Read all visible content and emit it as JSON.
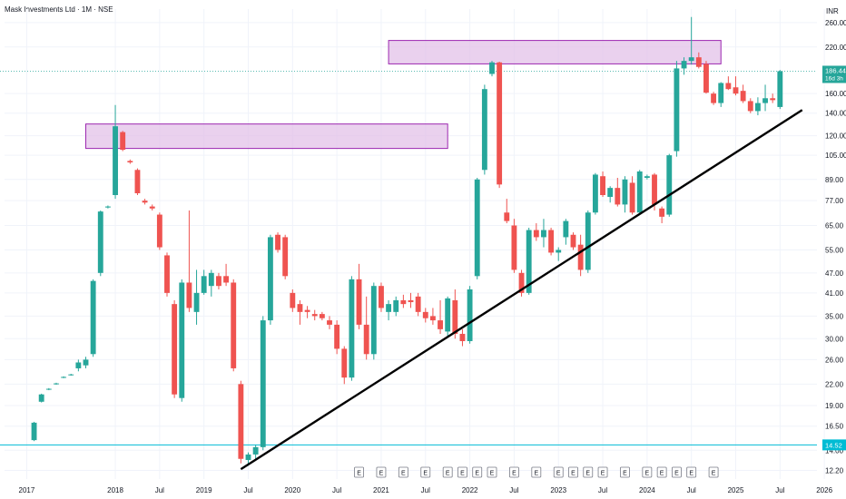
{
  "header": {
    "title": "Mask Investments Ltd · 1M · NSE"
  },
  "axis": {
    "currency": "INR"
  },
  "price_badge": {
    "value": "186.44",
    "countdown": "16d 3h",
    "color": "#26a69a"
  },
  "level_badge": {
    "value": "14.52",
    "color": "#00bcd4"
  },
  "colors": {
    "up": "#26a69a",
    "down": "#ef5350",
    "zone_fill": "#e1bee7",
    "zone_stroke": "#9c27b0",
    "trendline": "#000000",
    "hline": "#00bcd4"
  },
  "earnings_marker": "E",
  "chart_data": {
    "type": "candlestick",
    "title": "Mask Investments Ltd · 1M · NSE",
    "scale": "log",
    "ylim": [
      11.5,
      285
    ],
    "xlim": [
      "2016-10",
      "2025-12"
    ],
    "grid": true,
    "y_ticks": [
      "260.00",
      "220.00",
      "160.00",
      "140.00",
      "120.00",
      "105.00",
      "89.00",
      "77.00",
      "65.00",
      "55.00",
      "47.00",
      "41.00",
      "35.00",
      "30.00",
      "26.00",
      "22.00",
      "19.00",
      "16.50",
      "14.00",
      "12.20"
    ],
    "x_ticks": [
      {
        "label": "2017",
        "date": "2017-01"
      },
      {
        "label": "2018",
        "date": "2018-01"
      },
      {
        "label": "Jul",
        "date": "2018-07"
      },
      {
        "label": "2019",
        "date": "2019-01"
      },
      {
        "label": "Jul",
        "date": "2019-07"
      },
      {
        "label": "2020",
        "date": "2020-01"
      },
      {
        "label": "Jul",
        "date": "2020-07"
      },
      {
        "label": "2021",
        "date": "2021-01"
      },
      {
        "label": "Jul",
        "date": "2021-07"
      },
      {
        "label": "2022",
        "date": "2022-01"
      },
      {
        "label": "Jul",
        "date": "2022-07"
      },
      {
        "label": "2023",
        "date": "2023-01"
      },
      {
        "label": "Jul",
        "date": "2023-07"
      },
      {
        "label": "2024",
        "date": "2024-01"
      },
      {
        "label": "Jul",
        "date": "2024-07"
      },
      {
        "label": "2025",
        "date": "2025-01"
      },
      {
        "label": "Jul",
        "date": "2025-07"
      },
      {
        "label": "2026",
        "date": "2026-01"
      }
    ],
    "candles": [
      {
        "date": "2017-02",
        "o": 15.0,
        "h": 17.0,
        "l": 14.9,
        "c": 16.9
      },
      {
        "date": "2017-03",
        "o": 19.5,
        "h": 20.6,
        "l": 19.4,
        "c": 20.5
      },
      {
        "date": "2017-04",
        "o": 21.2,
        "h": 21.4,
        "l": 21.1,
        "c": 21.3
      },
      {
        "date": "2017-05",
        "o": 22.0,
        "h": 22.2,
        "l": 21.9,
        "c": 22.1
      },
      {
        "date": "2017-06",
        "o": 23.0,
        "h": 23.2,
        "l": 22.9,
        "c": 23.1
      },
      {
        "date": "2017-07",
        "o": 23.4,
        "h": 23.6,
        "l": 23.3,
        "c": 23.5
      },
      {
        "date": "2017-08",
        "o": 24.5,
        "h": 26.0,
        "l": 24.0,
        "c": 25.5
      },
      {
        "date": "2017-09",
        "o": 25.0,
        "h": 26.5,
        "l": 24.5,
        "c": 26.0
      },
      {
        "date": "2017-10",
        "o": 27.0,
        "h": 45.0,
        "l": 26.5,
        "c": 44.5
      },
      {
        "date": "2017-11",
        "o": 47.0,
        "h": 72.0,
        "l": 46.0,
        "c": 71.5
      },
      {
        "date": "2017-12",
        "o": 73.5,
        "h": 74.5,
        "l": 73.0,
        "c": 74.0
      },
      {
        "date": "2018-01",
        "o": 80.0,
        "h": 148.0,
        "l": 78.0,
        "c": 128.0
      },
      {
        "date": "2018-02",
        "o": 123.0,
        "h": 124.0,
        "l": 108.0,
        "c": 109.0
      },
      {
        "date": "2018-03",
        "o": 101.0,
        "h": 102.0,
        "l": 99.0,
        "c": 100.0
      },
      {
        "date": "2018-04",
        "o": 95.0,
        "h": 96.0,
        "l": 80.0,
        "c": 81.0
      },
      {
        "date": "2018-05",
        "o": 77.0,
        "h": 78.0,
        "l": 75.0,
        "c": 76.0
      },
      {
        "date": "2018-06",
        "o": 74.0,
        "h": 75.0,
        "l": 72.0,
        "c": 73.0
      },
      {
        "date": "2018-07",
        "o": 70.0,
        "h": 71.0,
        "l": 55.0,
        "c": 56.0
      },
      {
        "date": "2018-08",
        "o": 53.0,
        "h": 54.0,
        "l": 40.0,
        "c": 41.0
      },
      {
        "date": "2018-09",
        "o": 38.0,
        "h": 39.0,
        "l": 20.0,
        "c": 20.5
      },
      {
        "date": "2018-10",
        "o": 20.0,
        "h": 45.0,
        "l": 19.5,
        "c": 44.0
      },
      {
        "date": "2018-11",
        "o": 44.0,
        "h": 72.0,
        "l": 36.0,
        "c": 37.0
      },
      {
        "date": "2018-12",
        "o": 36.0,
        "h": 48.0,
        "l": 33.0,
        "c": 41.0
      },
      {
        "date": "2019-01",
        "o": 41.0,
        "h": 48.0,
        "l": 40.5,
        "c": 46.0
      },
      {
        "date": "2019-02",
        "o": 43.0,
        "h": 48.0,
        "l": 40.0,
        "c": 47.0
      },
      {
        "date": "2019-03",
        "o": 46.0,
        "h": 47.0,
        "l": 42.0,
        "c": 43.0
      },
      {
        "date": "2019-04",
        "o": 46.0,
        "h": 50.0,
        "l": 43.0,
        "c": 44.0
      },
      {
        "date": "2019-05",
        "o": 44.0,
        "h": 45.0,
        "l": 24.0,
        "c": 24.5
      },
      {
        "date": "2019-06",
        "o": 22.0,
        "h": 22.5,
        "l": 12.8,
        "c": 13.2
      },
      {
        "date": "2019-07",
        "o": 13.1,
        "h": 13.8,
        "l": 12.6,
        "c": 13.6
      },
      {
        "date": "2019-08",
        "o": 13.6,
        "h": 14.5,
        "l": 13.2,
        "c": 14.3
      },
      {
        "date": "2019-09",
        "o": 14.3,
        "h": 35.0,
        "l": 14.0,
        "c": 34.0
      },
      {
        "date": "2019-10",
        "o": 34.0,
        "h": 61.0,
        "l": 33.0,
        "c": 60.0
      },
      {
        "date": "2019-11",
        "o": 61.0,
        "h": 62.0,
        "l": 54.0,
        "c": 55.0
      },
      {
        "date": "2019-12",
        "o": 60.0,
        "h": 61.0,
        "l": 45.0,
        "c": 46.0
      },
      {
        "date": "2020-01",
        "o": 41.0,
        "h": 42.0,
        "l": 36.0,
        "c": 37.0
      },
      {
        "date": "2020-02",
        "o": 38.0,
        "h": 39.0,
        "l": 33.0,
        "c": 36.0
      },
      {
        "date": "2020-03",
        "o": 36.5,
        "h": 37.5,
        "l": 34.5,
        "c": 36.0
      },
      {
        "date": "2020-04",
        "o": 35.5,
        "h": 36.5,
        "l": 34.0,
        "c": 35.0
      },
      {
        "date": "2020-05",
        "o": 35.5,
        "h": 36.0,
        "l": 34.0,
        "c": 34.5
      },
      {
        "date": "2020-06",
        "o": 34.0,
        "h": 35.0,
        "l": 32.0,
        "c": 33.0
      },
      {
        "date": "2020-07",
        "o": 33.0,
        "h": 34.0,
        "l": 27.0,
        "c": 28.0
      },
      {
        "date": "2020-08",
        "o": 28.0,
        "h": 28.5,
        "l": 22.0,
        "c": 23.0
      },
      {
        "date": "2020-09",
        "o": 23.0,
        "h": 46.0,
        "l": 22.5,
        "c": 45.0
      },
      {
        "date": "2020-10",
        "o": 45.0,
        "h": 50.0,
        "l": 32.0,
        "c": 33.0
      },
      {
        "date": "2020-11",
        "o": 33.0,
        "h": 40.0,
        "l": 26.0,
        "c": 27.0
      },
      {
        "date": "2020-12",
        "o": 27.0,
        "h": 44.0,
        "l": 26.0,
        "c": 43.0
      },
      {
        "date": "2021-01",
        "o": 43.0,
        "h": 44.0,
        "l": 36.0,
        "c": 37.0
      },
      {
        "date": "2021-02",
        "o": 36.0,
        "h": 39.0,
        "l": 34.0,
        "c": 38.0
      },
      {
        "date": "2021-03",
        "o": 36.0,
        "h": 40.0,
        "l": 35.0,
        "c": 39.0
      },
      {
        "date": "2021-04",
        "o": 39.0,
        "h": 40.5,
        "l": 37.0,
        "c": 38.0
      },
      {
        "date": "2021-05",
        "o": 39.0,
        "h": 41.0,
        "l": 37.0,
        "c": 38.5
      },
      {
        "date": "2021-06",
        "o": 40.0,
        "h": 41.0,
        "l": 35.0,
        "c": 36.0
      },
      {
        "date": "2021-07",
        "o": 36.0,
        "h": 37.0,
        "l": 33.5,
        "c": 34.5
      },
      {
        "date": "2021-08",
        "o": 35.0,
        "h": 37.0,
        "l": 33.0,
        "c": 34.0
      },
      {
        "date": "2021-09",
        "o": 34.0,
        "h": 39.0,
        "l": 31.0,
        "c": 32.0
      },
      {
        "date": "2021-10",
        "o": 31.5,
        "h": 40.0,
        "l": 30.5,
        "c": 39.5
      },
      {
        "date": "2021-11",
        "o": 39.0,
        "h": 42.0,
        "l": 30.0,
        "c": 31.0
      },
      {
        "date": "2021-12",
        "o": 31.0,
        "h": 32.0,
        "l": 28.5,
        "c": 29.5
      },
      {
        "date": "2022-01",
        "o": 29.5,
        "h": 43.0,
        "l": 29.0,
        "c": 42.0
      },
      {
        "date": "2022-02",
        "o": 46.0,
        "h": 90.0,
        "l": 45.0,
        "c": 89.0
      },
      {
        "date": "2022-03",
        "o": 95.0,
        "h": 170.0,
        "l": 92.0,
        "c": 165.0
      },
      {
        "date": "2022-04",
        "o": 183.0,
        "h": 200.0,
        "l": 180.0,
        "c": 198.0
      },
      {
        "date": "2022-05",
        "o": 198.0,
        "h": 199.0,
        "l": 84.0,
        "c": 86.0
      },
      {
        "date": "2022-06",
        "o": 71.0,
        "h": 78.0,
        "l": 66.0,
        "c": 67.0
      },
      {
        "date": "2022-07",
        "o": 65.0,
        "h": 68.0,
        "l": 47.0,
        "c": 48.0
      },
      {
        "date": "2022-08",
        "o": 47.0,
        "h": 48.0,
        "l": 40.0,
        "c": 41.0
      },
      {
        "date": "2022-09",
        "o": 41.0,
        "h": 64.0,
        "l": 40.5,
        "c": 63.0
      },
      {
        "date": "2022-10",
        "o": 63.0,
        "h": 66.0,
        "l": 58.5,
        "c": 60.0
      },
      {
        "date": "2022-11",
        "o": 60.0,
        "h": 68.0,
        "l": 56.0,
        "c": 63.0
      },
      {
        "date": "2022-12",
        "o": 63.0,
        "h": 64.0,
        "l": 53.0,
        "c": 54.0
      },
      {
        "date": "2023-01",
        "o": 54.0,
        "h": 56.0,
        "l": 51.0,
        "c": 55.0
      },
      {
        "date": "2023-02",
        "o": 60.0,
        "h": 68.0,
        "l": 57.0,
        "c": 67.0
      },
      {
        "date": "2023-03",
        "o": 61.0,
        "h": 62.0,
        "l": 55.0,
        "c": 56.0
      },
      {
        "date": "2023-04",
        "o": 57.0,
        "h": 61.0,
        "l": 46.0,
        "c": 48.0
      },
      {
        "date": "2023-05",
        "o": 48.0,
        "h": 72.0,
        "l": 47.0,
        "c": 71.0
      },
      {
        "date": "2023-06",
        "o": 71.0,
        "h": 93.0,
        "l": 70.0,
        "c": 92.0
      },
      {
        "date": "2023-07",
        "o": 91.0,
        "h": 94.0,
        "l": 79.0,
        "c": 80.0
      },
      {
        "date": "2023-08",
        "o": 79.0,
        "h": 85.0,
        "l": 76.0,
        "c": 84.0
      },
      {
        "date": "2023-09",
        "o": 84.0,
        "h": 90.0,
        "l": 74.0,
        "c": 75.0
      },
      {
        "date": "2023-10",
        "o": 75.0,
        "h": 91.0,
        "l": 71.0,
        "c": 89.0
      },
      {
        "date": "2023-11",
        "o": 87.0,
        "h": 91.0,
        "l": 70.0,
        "c": 71.0
      },
      {
        "date": "2023-12",
        "o": 71.0,
        "h": 95.0,
        "l": 70.0,
        "c": 94.0
      },
      {
        "date": "2024-01",
        "o": 90.0,
        "h": 92.0,
        "l": 89.0,
        "c": 91.0
      },
      {
        "date": "2024-02",
        "o": 92.0,
        "h": 93.0,
        "l": 72.0,
        "c": 75.0
      },
      {
        "date": "2024-03",
        "o": 73.0,
        "h": 74.0,
        "l": 66.0,
        "c": 69.0
      },
      {
        "date": "2024-04",
        "o": 70.0,
        "h": 106.0,
        "l": 69.0,
        "c": 105.0
      },
      {
        "date": "2024-05",
        "o": 108.0,
        "h": 200.0,
        "l": 104.0,
        "c": 190.0
      },
      {
        "date": "2024-06",
        "o": 190.0,
        "h": 205.0,
        "l": 182.0,
        "c": 200.0
      },
      {
        "date": "2024-07",
        "o": 200.0,
        "h": 270.0,
        "l": 195.0,
        "c": 205.0
      },
      {
        "date": "2024-08",
        "o": 205.0,
        "h": 212.0,
        "l": 190.0,
        "c": 192.0
      },
      {
        "date": "2024-09",
        "o": 196.0,
        "h": 200.0,
        "l": 160.0,
        "c": 161.0
      },
      {
        "date": "2024-10",
        "o": 160.0,
        "h": 162.0,
        "l": 148.0,
        "c": 150.0
      },
      {
        "date": "2024-11",
        "o": 150.0,
        "h": 173.0,
        "l": 146.0,
        "c": 172.0
      },
      {
        "date": "2024-12",
        "o": 172.0,
        "h": 180.0,
        "l": 164.0,
        "c": 165.0
      },
      {
        "date": "2025-01",
        "o": 167.0,
        "h": 180.0,
        "l": 158.0,
        "c": 160.0
      },
      {
        "date": "2025-02",
        "o": 163.0,
        "h": 170.0,
        "l": 150.0,
        "c": 152.0
      },
      {
        "date": "2025-03",
        "o": 152.0,
        "h": 155.0,
        "l": 140.0,
        "c": 142.0
      },
      {
        "date": "2025-04",
        "o": 142.0,
        "h": 156.0,
        "l": 138.0,
        "c": 150.0
      },
      {
        "date": "2025-05",
        "o": 150.0,
        "h": 170.0,
        "l": 142.0,
        "c": 155.0
      },
      {
        "date": "2025-06",
        "o": 155.0,
        "h": 160.0,
        "l": 150.0,
        "c": 153.0
      },
      {
        "date": "2025-07",
        "o": 146.0,
        "h": 188.0,
        "l": 144.0,
        "c": 186.44
      }
    ],
    "zones": [
      {
        "from": "2017-09",
        "to": "2021-10",
        "low": 110,
        "high": 130
      },
      {
        "from": "2021-02",
        "to": "2024-11",
        "low": 196,
        "high": 230
      }
    ],
    "trendline": {
      "from": {
        "date": "2019-06",
        "price": 12.3
      },
      "to": {
        "date": "2025-10",
        "price": 143
      }
    },
    "hline": {
      "price": 14.52
    },
    "current_price": 186.44,
    "earnings_dates": [
      "2020-10",
      "2021-01",
      "2021-04",
      "2021-07",
      "2021-10",
      "2021-12",
      "2022-02",
      "2022-04",
      "2022-07",
      "2022-10",
      "2023-01",
      "2023-03",
      "2023-05",
      "2023-07",
      "2023-10",
      "2024-01",
      "2024-03",
      "2024-05",
      "2024-07",
      "2024-10"
    ]
  }
}
